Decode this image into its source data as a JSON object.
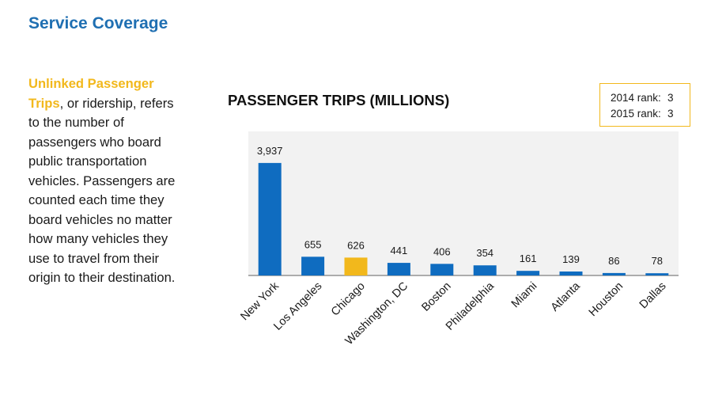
{
  "section": {
    "title": "Service Coverage"
  },
  "description": {
    "term": "Unlinked Passenger Trips",
    "text": ", or ridership, refers to the number of passengers who board public transportation vehicles. Passengers are counted each time they board vehicles no matter how many vehicles they use to travel from their origin to their destination."
  },
  "rank_box": {
    "rows": [
      {
        "label": "2014 rank:",
        "value": "3"
      },
      {
        "label": "2015 rank:",
        "value": "3"
      }
    ]
  },
  "colors": {
    "bar": "#0f6cc0",
    "highlight": "#f2b81c",
    "plot_bg": "#f2f2f2",
    "title": "#1f6fb2"
  },
  "chart_data": {
    "type": "bar",
    "title": "PASSENGER TRIPS (MILLIONS)",
    "xlabel": "",
    "ylabel": "",
    "ylim": [
      0,
      4500
    ],
    "grid": false,
    "highlight": "Chicago",
    "categories": [
      "New York",
      "Los Angeles",
      "Chicago",
      "Washington, DC",
      "Boston",
      "Philadelphia",
      "Miami",
      "Atlanta",
      "Houston",
      "Dallas"
    ],
    "values": [
      3937,
      655,
      626,
      441,
      406,
      354,
      161,
      139,
      86,
      78
    ],
    "value_labels": [
      "3,937",
      "655",
      "626",
      "441",
      "406",
      "354",
      "161",
      "139",
      "86",
      "78"
    ]
  }
}
